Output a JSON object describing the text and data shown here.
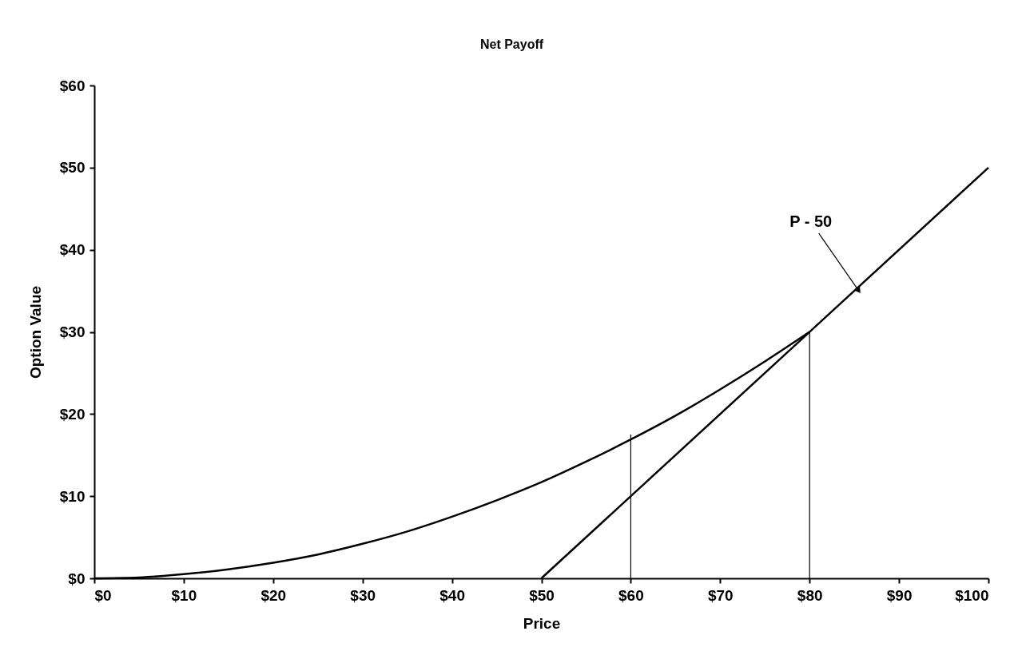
{
  "chart_data": {
    "type": "line",
    "title": "Net Payoff",
    "xlabel": "Price",
    "ylabel": "Option Value",
    "xlim": [
      0,
      100
    ],
    "ylim": [
      0,
      60
    ],
    "xticks": [
      {
        "value": 0,
        "label": "$0"
      },
      {
        "value": 10,
        "label": "$10"
      },
      {
        "value": 20,
        "label": "$20"
      },
      {
        "value": 30,
        "label": "$30"
      },
      {
        "value": 40,
        "label": "$40"
      },
      {
        "value": 50,
        "label": "$50"
      },
      {
        "value": 60,
        "label": "$60"
      },
      {
        "value": 70,
        "label": "$70"
      },
      {
        "value": 80,
        "label": "$80"
      },
      {
        "value": 90,
        "label": "$90"
      },
      {
        "value": 100,
        "label": "$100"
      }
    ],
    "yticks": [
      {
        "value": 0,
        "label": "$0"
      },
      {
        "value": 10,
        "label": "$10"
      },
      {
        "value": 20,
        "label": "$20"
      },
      {
        "value": 30,
        "label": "$30"
      },
      {
        "value": 40,
        "label": "$40"
      },
      {
        "value": 50,
        "label": "$50"
      },
      {
        "value": 60,
        "label": "$60"
      }
    ],
    "grid": false,
    "marker": "none",
    "line_style": "solid",
    "series": [
      {
        "color": "#000000",
        "x": [
          0,
          5,
          10,
          15,
          20,
          25,
          30,
          35,
          40,
          45,
          50,
          55,
          60,
          65,
          70,
          75,
          80
        ],
        "values": [
          0,
          0.1,
          0.5,
          1.1,
          1.9,
          2.9,
          4.2,
          5.7,
          7.5,
          9.5,
          11.7,
          14.2,
          16.9,
          19.8,
          23,
          26.4,
          30
        ]
      },
      {
        "color": "#000000",
        "x": [
          50,
          100
        ],
        "values": [
          0,
          50
        ]
      },
      {
        "color": "#000000",
        "x": [
          60,
          60
        ],
        "values": [
          0,
          17.5
        ]
      },
      {
        "color": "#000000",
        "x": [
          80,
          80
        ],
        "values": [
          0,
          30
        ]
      }
    ],
    "annotations": [
      {
        "text": "P - 50",
        "x": 85.5,
        "y": 35
      }
    ]
  }
}
